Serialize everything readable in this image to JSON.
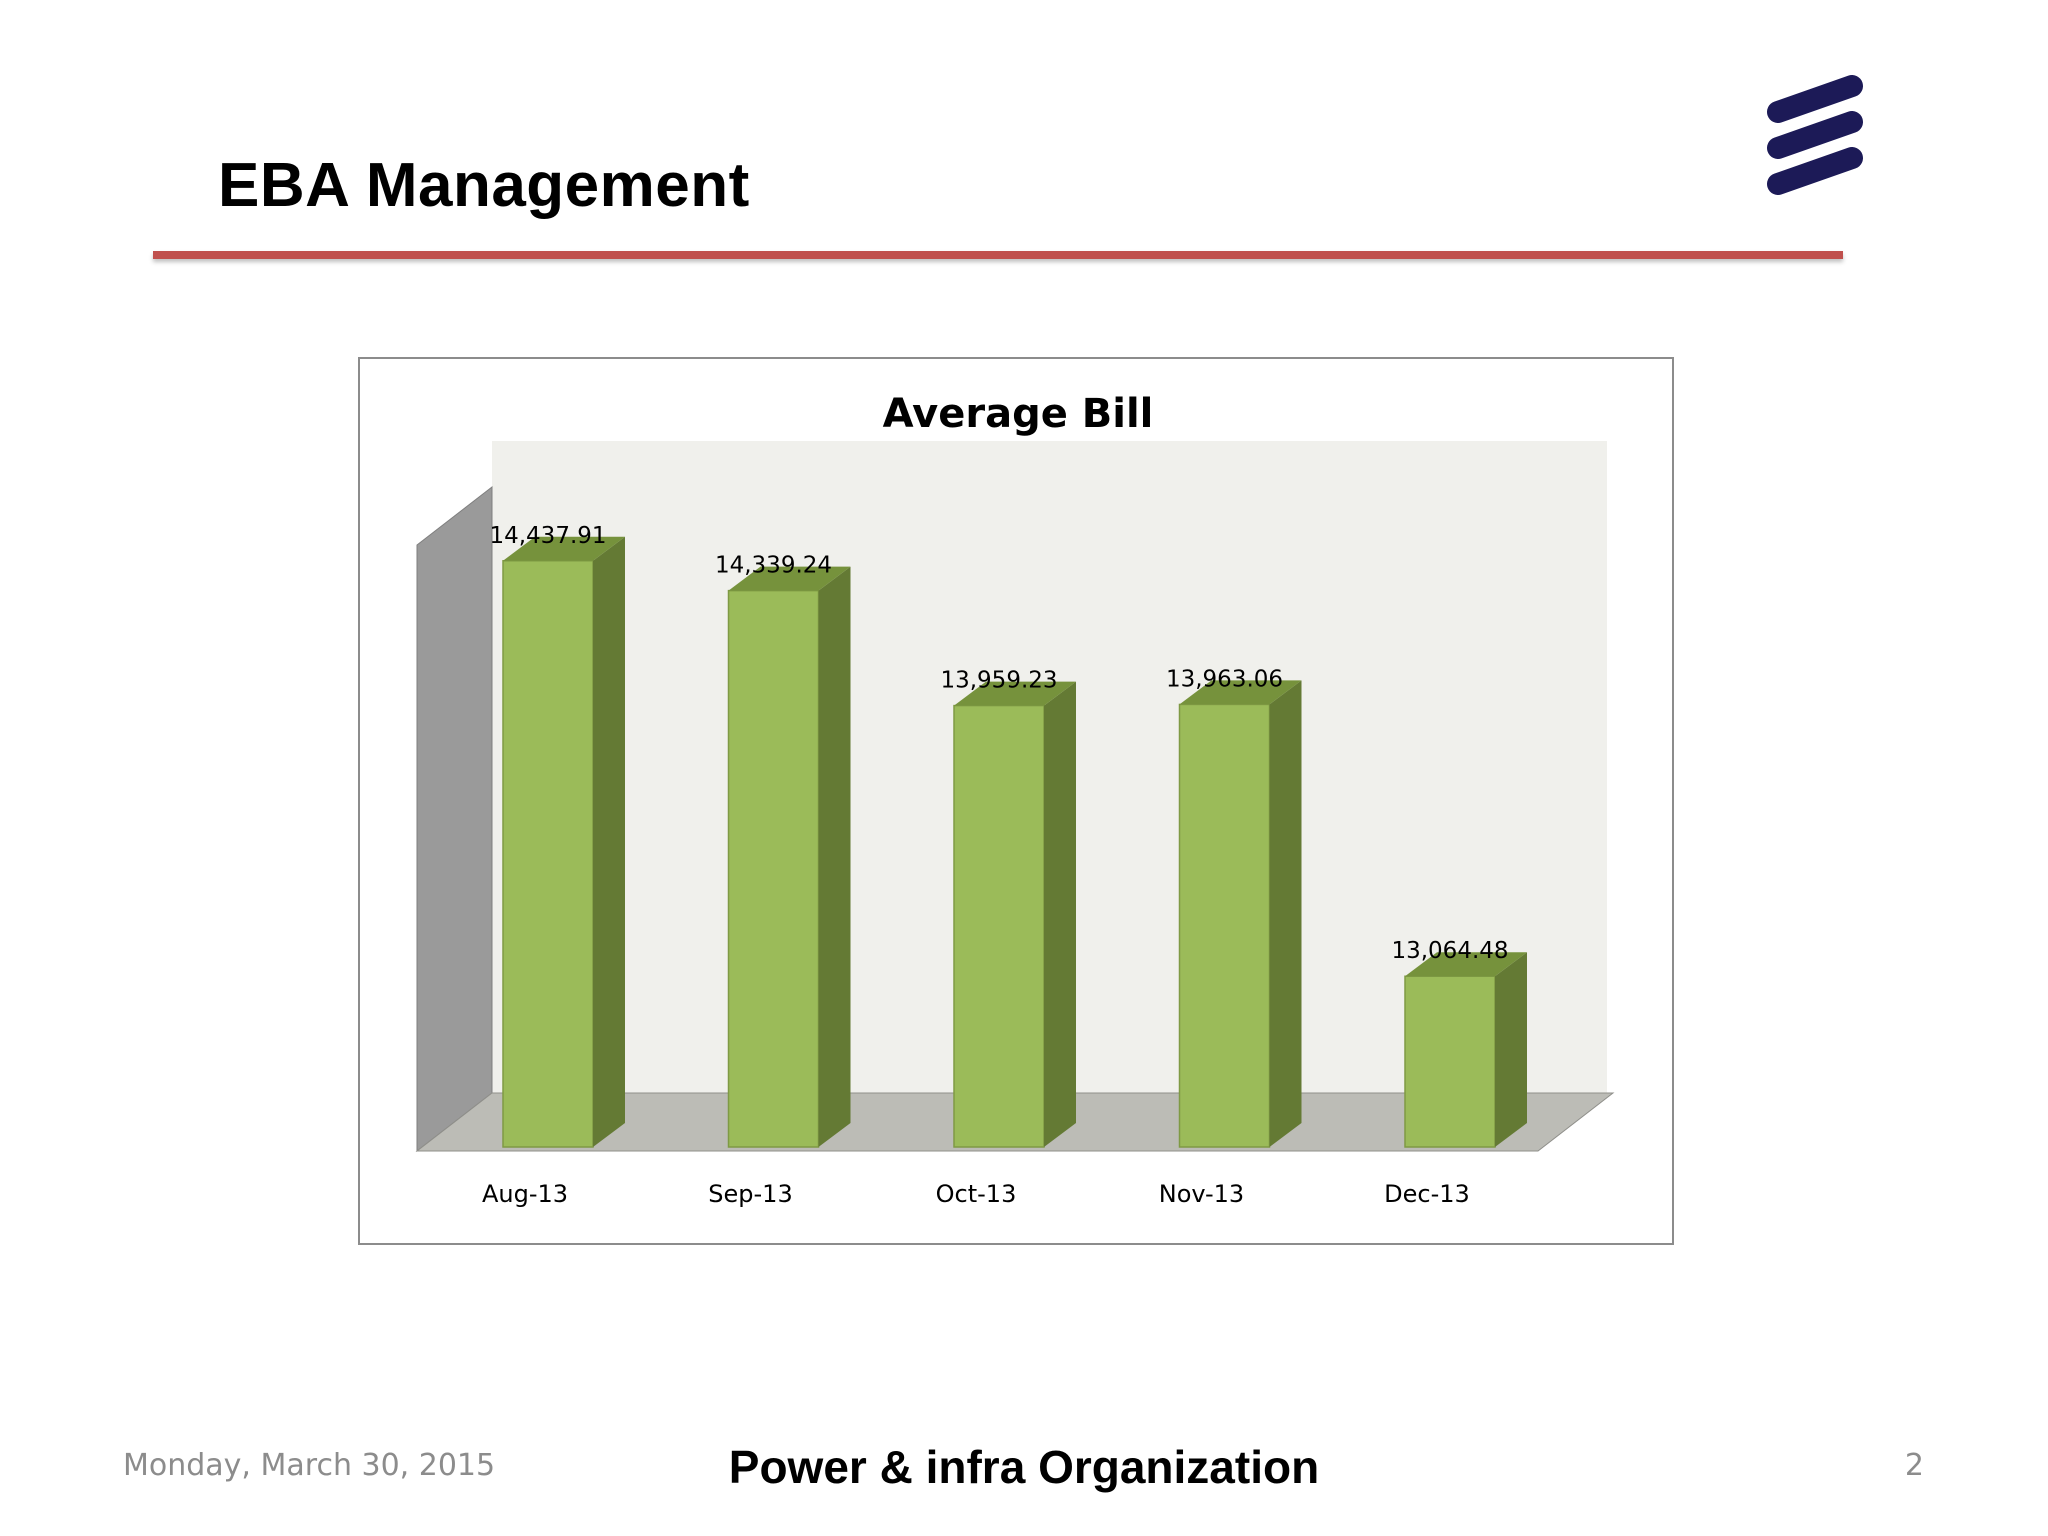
{
  "slide": {
    "title": "EBA Management",
    "logo_icon": "ericsson-logo-icon",
    "accent_color": "#c0504d",
    "logo_color": "#1c1a57"
  },
  "chart_data": {
    "type": "bar",
    "style": "3d-column",
    "title": "Average Bill",
    "xlabel": "",
    "ylabel": "",
    "categories": [
      "Aug-13",
      "Sep-13",
      "Oct-13",
      "Nov-13",
      "Dec-13"
    ],
    "values": [
      14437.91,
      14339.24,
      13959.23,
      13963.06,
      13064.48
    ],
    "data_labels": [
      "14,437.91",
      "14,339.24",
      "13,959.23",
      "13,963.06",
      "13,064.48"
    ],
    "ylim": [
      12500,
      14500
    ],
    "grid": false,
    "legend": "none",
    "bar_color": "#9bbb59",
    "bar_side_color": "#647a34",
    "bar_top_color": "#76923c"
  },
  "footer": {
    "date": "Monday, March 30, 2015",
    "organization": "Power & infra Organization",
    "page_number": "2"
  }
}
